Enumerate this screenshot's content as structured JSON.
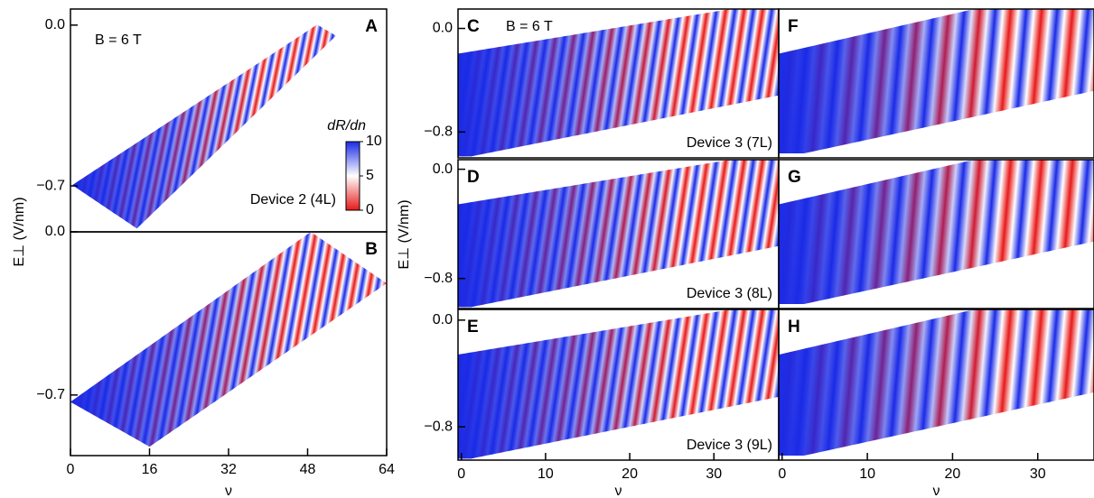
{
  "chart_data": [
    {
      "type": "heatmap",
      "panel": "A",
      "annotation": "B = 6 T",
      "device": "Device 2 (4L)",
      "ylabel": "E⊥ (V/nm)",
      "xlim": [
        0,
        64
      ],
      "ylim": [
        -0.9,
        0.07
      ],
      "yticks": [
        {
          "value": 0.0,
          "label": "0.0"
        },
        {
          "value": -0.7,
          "label": "−0.7"
        }
      ],
      "colorbar": {
        "label": "dR/dn",
        "lim": [
          0,
          10
        ],
        "ticks": [
          0,
          5,
          10
        ]
      }
    },
    {
      "type": "heatmap",
      "panel": "B",
      "xlabel": "ν",
      "xlim": [
        0,
        64
      ],
      "ylim": [
        -0.96,
        0
      ],
      "xticks": [
        0,
        16,
        32,
        48,
        64
      ],
      "yticks": [
        {
          "value": 0.0,
          "label": "0.0"
        },
        {
          "value": -0.7,
          "label": "−0.7"
        }
      ]
    },
    {
      "type": "heatmap",
      "panel": "C",
      "annotation": "B = 6 T",
      "device": "Device 3 (7L)",
      "xlim": [
        -0.4,
        37.7
      ],
      "ylim": [
        -1.0,
        0.15
      ],
      "yticks": [
        {
          "value": 0.0,
          "label": "0.0"
        },
        {
          "value": -0.8,
          "label": "−0.8"
        }
      ]
    },
    {
      "type": "heatmap",
      "panel": "D",
      "device": "Device 3 (8L)",
      "ylabel": "E⊥ (V/nm)",
      "xlim": [
        -0.4,
        37.7
      ],
      "ylim": [
        -1.02,
        0.07
      ],
      "yticks": [
        {
          "value": 0.0,
          "label": "0.0"
        },
        {
          "value": -0.8,
          "label": "−0.8"
        }
      ]
    },
    {
      "type": "heatmap",
      "panel": "E",
      "device": "Device 3 (9L)",
      "xlabel": "ν",
      "xlim": [
        -0.4,
        37.7
      ],
      "ylim": [
        -1.05,
        0.08
      ],
      "xticks": [
        0,
        10,
        20,
        30
      ],
      "yticks": [
        {
          "value": 0.0,
          "label": "0.0"
        },
        {
          "value": -0.8,
          "label": "−0.8"
        }
      ]
    },
    {
      "type": "heatmap",
      "panel": "F",
      "xlim": [
        -0.4,
        36.6
      ],
      "ylim": [
        -1.0,
        0.15
      ]
    },
    {
      "type": "heatmap",
      "panel": "G",
      "xlim": [
        -0.4,
        36.6
      ],
      "ylim": [
        -1.02,
        0.07
      ]
    },
    {
      "type": "heatmap",
      "panel": "H",
      "xlabel": "ν",
      "xlim": [
        -0.4,
        36.6
      ],
      "ylim": [
        -1.05,
        0.08
      ],
      "xticks": [
        0,
        10,
        20,
        30
      ]
    }
  ]
}
